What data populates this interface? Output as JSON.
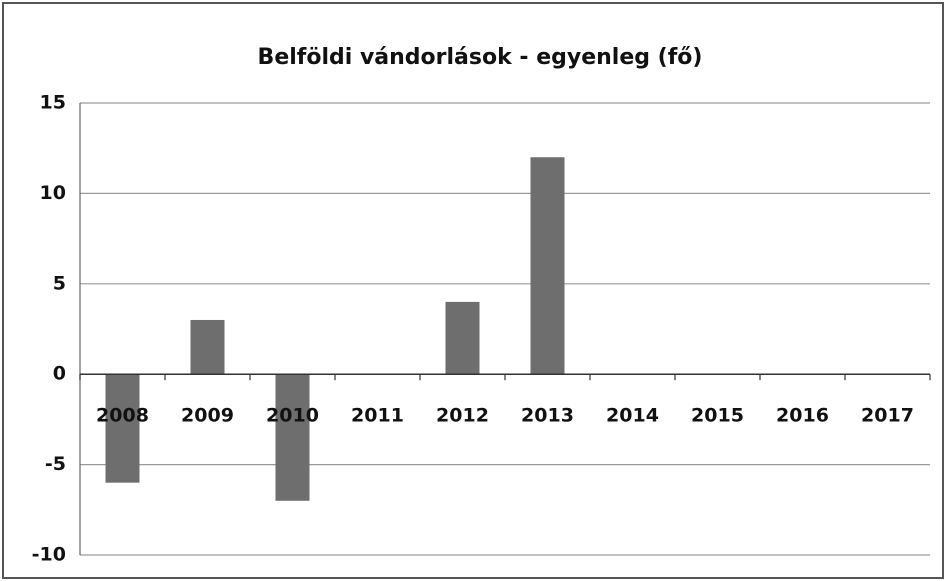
{
  "chart_data": {
    "type": "bar",
    "title": "Belföldi vándorlások - egyenleg (fő)",
    "categories": [
      "2008",
      "2009",
      "2010",
      "2011",
      "2012",
      "2013",
      "2014",
      "2015",
      "2016",
      "2017"
    ],
    "values": [
      -6,
      3,
      -7,
      0,
      4,
      12,
      0,
      0,
      0,
      0
    ],
    "color": "#6e6e6e",
    "ylim": [
      -10,
      15
    ],
    "yticks": [
      -10,
      -5,
      0,
      5,
      10,
      15
    ],
    "grid": true
  }
}
